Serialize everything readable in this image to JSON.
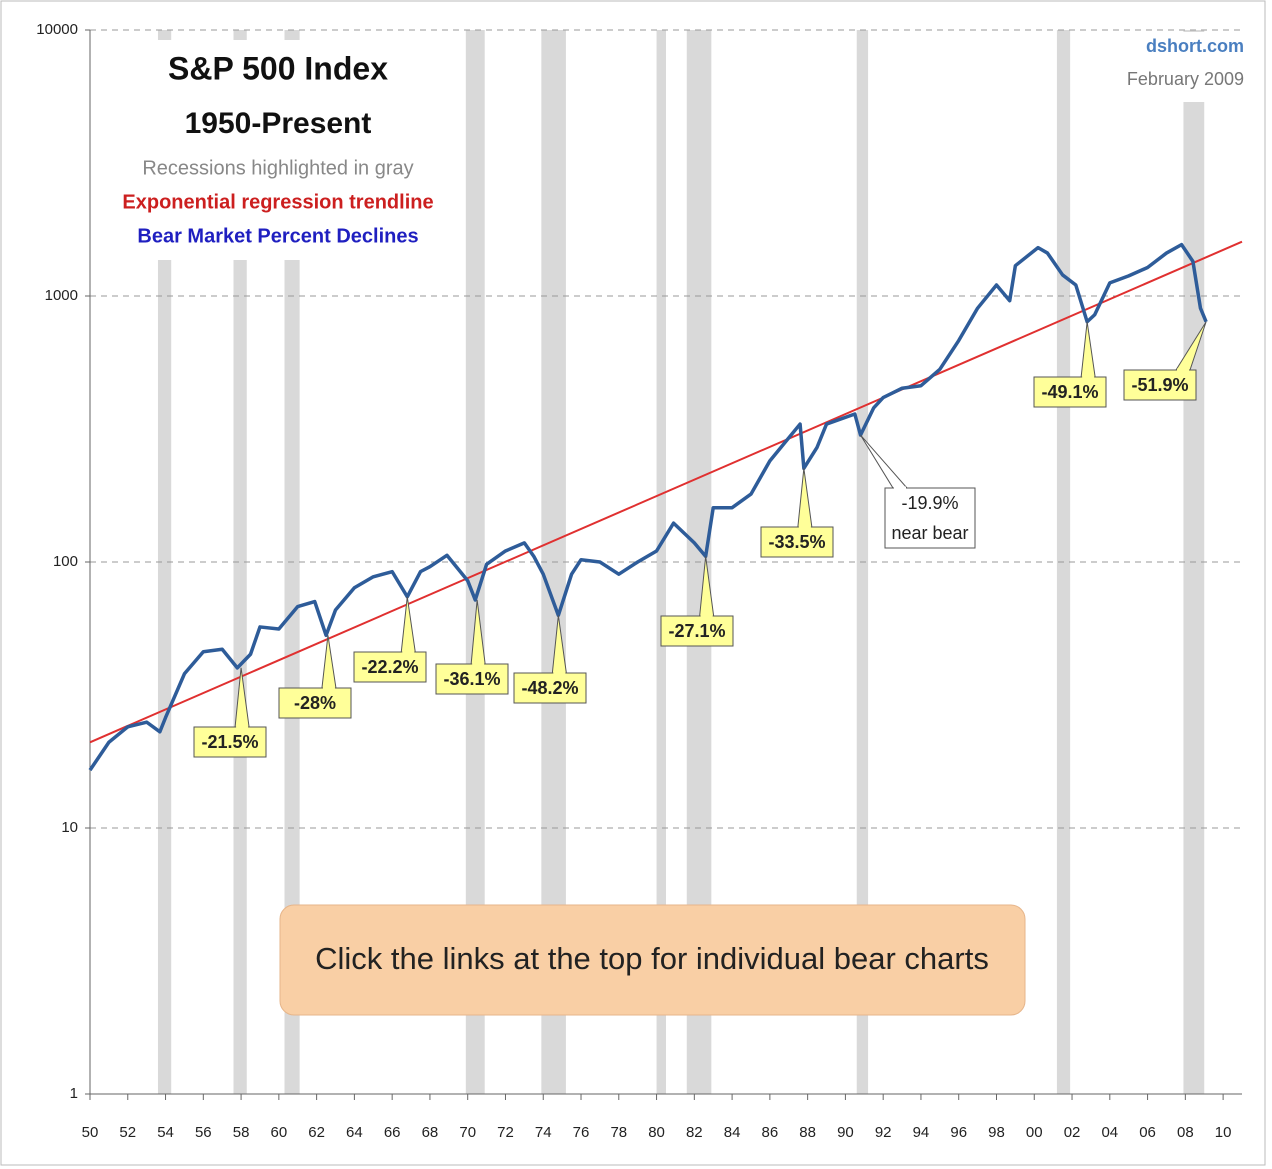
{
  "chart_data": {
    "type": "line",
    "title": "S&P 500 Index",
    "subtitle": "1950-Present",
    "notes": [
      {
        "text": "Recessions highlighted in gray",
        "color": "#888888"
      },
      {
        "text": "Exponential regression trendline",
        "color": "#cc1f1f"
      },
      {
        "text": "Bear Market Percent Declines",
        "color": "#1f1fc0"
      }
    ],
    "source": "dshort.com",
    "date": "February 2009",
    "banner": "Click the links at the top for individual bear charts",
    "log_scale": true,
    "grid": true,
    "xlim": [
      1950,
      2011
    ],
    "ylim": [
      1,
      10000
    ],
    "yticks": [
      1,
      10,
      100,
      1000,
      10000
    ],
    "xticks": [
      {
        "value": 1950,
        "label": "50"
      },
      {
        "value": 1952,
        "label": "52"
      },
      {
        "value": 1954,
        "label": "54"
      },
      {
        "value": 1956,
        "label": "56"
      },
      {
        "value": 1958,
        "label": "58"
      },
      {
        "value": 1960,
        "label": "60"
      },
      {
        "value": 1962,
        "label": "62"
      },
      {
        "value": 1964,
        "label": "64"
      },
      {
        "value": 1966,
        "label": "66"
      },
      {
        "value": 1968,
        "label": "68"
      },
      {
        "value": 1970,
        "label": "70"
      },
      {
        "value": 1972,
        "label": "72"
      },
      {
        "value": 1974,
        "label": "74"
      },
      {
        "value": 1976,
        "label": "76"
      },
      {
        "value": 1978,
        "label": "78"
      },
      {
        "value": 1980,
        "label": "80"
      },
      {
        "value": 1982,
        "label": "82"
      },
      {
        "value": 1984,
        "label": "84"
      },
      {
        "value": 1986,
        "label": "86"
      },
      {
        "value": 1988,
        "label": "88"
      },
      {
        "value": 1990,
        "label": "90"
      },
      {
        "value": 1992,
        "label": "92"
      },
      {
        "value": 1994,
        "label": "94"
      },
      {
        "value": 1996,
        "label": "96"
      },
      {
        "value": 1998,
        "label": "98"
      },
      {
        "value": 2000,
        "label": "00"
      },
      {
        "value": 2002,
        "label": "02"
      },
      {
        "value": 2004,
        "label": "04"
      },
      {
        "value": 2006,
        "label": "06"
      },
      {
        "value": 2008,
        "label": "08"
      },
      {
        "value": 2010,
        "label": "10"
      }
    ],
    "recessions": [
      [
        1953.6,
        1954.3
      ],
      [
        1957.6,
        1958.3
      ],
      [
        1960.3,
        1961.1
      ],
      [
        1969.9,
        1970.9
      ],
      [
        1973.9,
        1975.2
      ],
      [
        1980.0,
        1980.5
      ],
      [
        1981.6,
        1982.9
      ],
      [
        1990.6,
        1991.2
      ],
      [
        2001.2,
        2001.9
      ],
      [
        2007.9,
        2009.0
      ]
    ],
    "recession_color": "#d9d9d9",
    "trendline": {
      "x": [
        1950,
        2011
      ],
      "values": [
        21,
        1600
      ],
      "color": "#e03030"
    },
    "series": [
      {
        "name": "S&P 500",
        "color": "#2e5c99",
        "x": [
          1950,
          1951,
          1952,
          1953,
          1953.7,
          1954,
          1955,
          1956,
          1957,
          1957.8,
          1958.5,
          1959,
          1960,
          1961,
          1961.9,
          1962.5,
          1963,
          1964,
          1965,
          1966,
          1966.8,
          1967.5,
          1968,
          1968.9,
          1970,
          1970.4,
          1971,
          1972,
          1973,
          1973.5,
          1974,
          1974.8,
          1975.5,
          1976,
          1977,
          1978,
          1979,
          1980,
          1980.9,
          1982,
          1982.6,
          1983,
          1984,
          1985,
          1986,
          1987.6,
          1987.8,
          1988.5,
          1989,
          1990.5,
          1990.8,
          1991.5,
          1992,
          1993,
          1994,
          1995,
          1996,
          1997,
          1998,
          1998.7,
          1999,
          2000.2,
          2000.7,
          2001.5,
          2002.2,
          2002.8,
          2003.2,
          2004,
          2005,
          2006,
          2007,
          2007.8,
          2008.4,
          2008.8,
          2009.1
        ],
        "values": [
          16.5,
          21,
          24,
          25,
          23,
          26,
          38,
          46,
          47,
          40,
          45,
          57,
          56,
          68,
          71,
          53,
          66,
          80,
          88,
          92,
          74,
          92,
          96,
          106,
          85,
          72,
          98,
          110,
          118,
          105,
          90,
          63,
          90,
          102,
          100,
          90,
          100,
          110,
          140,
          118,
          105,
          160,
          160,
          180,
          240,
          330,
          225,
          270,
          330,
          360,
          300,
          380,
          415,
          450,
          460,
          530,
          680,
          900,
          1100,
          960,
          1300,
          1520,
          1450,
          1200,
          1100,
          800,
          850,
          1120,
          1190,
          1280,
          1450,
          1560,
          1350,
          900,
          800
        ]
      }
    ],
    "annotations": [
      {
        "text": "-21.5%",
        "x": 1958,
        "y": 40
      },
      {
        "text": "-28%",
        "x": 1962.6,
        "y": 53
      },
      {
        "text": "-22.2%",
        "x": 1966.8,
        "y": 74
      },
      {
        "text": "-36.1%",
        "x": 1970.5,
        "y": 72
      },
      {
        "text": "-48.2%",
        "x": 1974.8,
        "y": 63
      },
      {
        "text": "-27.1%",
        "x": 1982.6,
        "y": 105
      },
      {
        "text": "-33.5%",
        "x": 1987.8,
        "y": 225
      },
      {
        "text": "-19.9%",
        "subtext": "near bear",
        "x": 1990.8,
        "y": 300
      },
      {
        "text": "-49.1%",
        "x": 2002.8,
        "y": 800
      },
      {
        "text": "-51.9%",
        "x": 2009.1,
        "y": 800
      }
    ]
  }
}
